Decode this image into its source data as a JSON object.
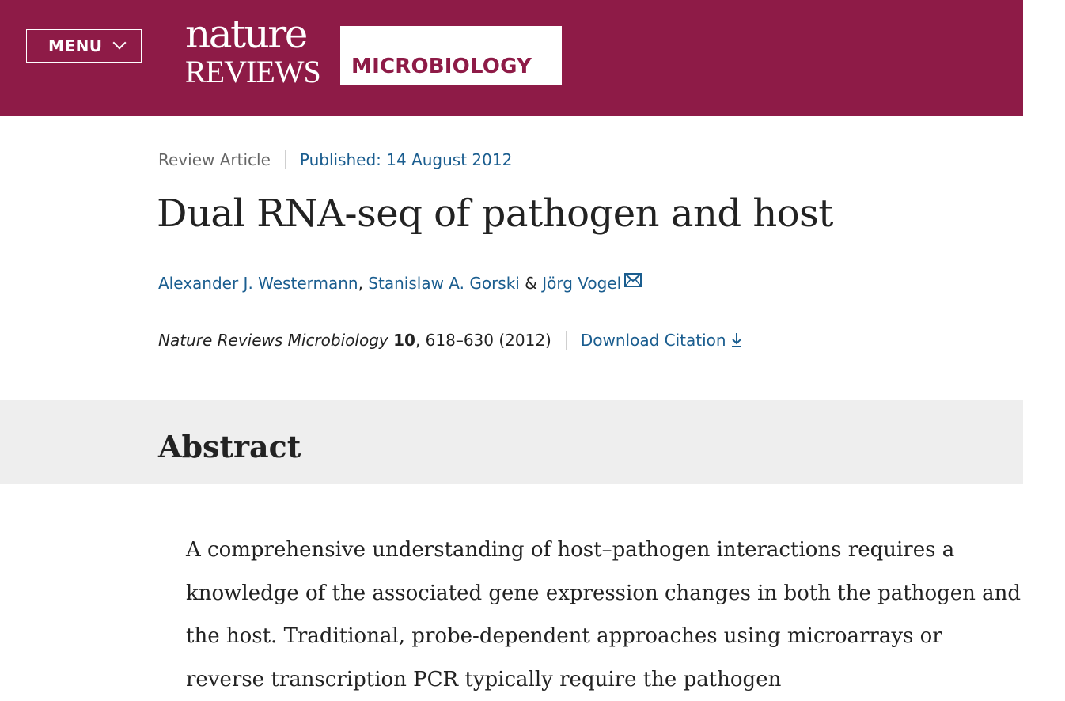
{
  "header": {
    "menu_label": "MENU",
    "logo": {
      "line1": "nature",
      "line2": "REVIEWS",
      "journal": "MICROBIOLOGY"
    },
    "brand_color": "#8e1b47"
  },
  "article": {
    "type": "Review Article",
    "published": "Published: 14 August 2012",
    "title": "Dual RNA-seq of pathogen and host",
    "authors": [
      "Alexander J. Westermann",
      "Stanislaw A. Gorski",
      "Jörg Vogel"
    ],
    "author_separator": ",",
    "author_and": "&",
    "citation": {
      "journal": "Nature Reviews Microbiology",
      "volume": "10",
      "pages_year": ", 618–630 (2012)"
    },
    "download_citation": "Download Citation",
    "link_color": "#1a5d8f"
  },
  "abstract": {
    "heading": "Abstract",
    "text": "A comprehensive understanding of host–pathogen interactions requires a knowledge of the associated gene expression changes in both the pathogen and the host. Traditional, probe-dependent approaches using microarrays or reverse transcription PCR typically require the pathogen"
  },
  "icons": {
    "menu": "chevron-down-icon",
    "author_contact": "mail-icon",
    "download": "download-arrow-icon"
  }
}
